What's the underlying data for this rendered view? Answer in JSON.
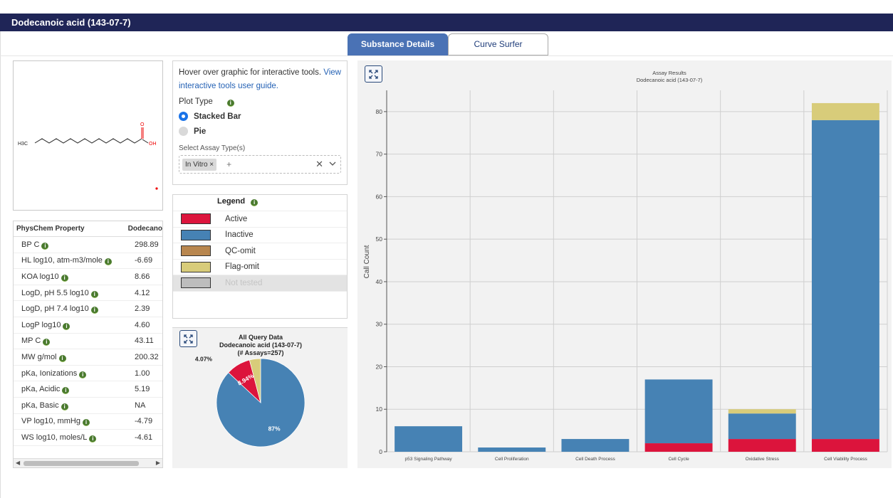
{
  "header": {
    "title": "Dodecanoic acid (143-07-7)"
  },
  "tabs": [
    {
      "label": "Substance Details"
    },
    {
      "label": "Curve Surfer"
    }
  ],
  "structure": {
    "ch3_label": "H3C",
    "o_label": "O",
    "oh_label": "OH"
  },
  "physchem": {
    "col_property": "PhysChem Property",
    "col_value": "Dodecano",
    "rows": [
      {
        "name": "BP C",
        "value": "298.89"
      },
      {
        "name": "HL log10, atm-m3/mole",
        "value": "-6.69"
      },
      {
        "name": "KOA log10",
        "value": "8.66"
      },
      {
        "name": "LogD, pH 5.5 log10",
        "value": "4.12"
      },
      {
        "name": "LogD, pH 7.4 log10",
        "value": "2.39"
      },
      {
        "name": "LogP log10",
        "value": "4.60"
      },
      {
        "name": "MP C",
        "value": "43.11"
      },
      {
        "name": "MW g/mol",
        "value": "200.32"
      },
      {
        "name": "pKa, Ionizations",
        "value": "1.00"
      },
      {
        "name": "pKa, Acidic",
        "value": "5.19"
      },
      {
        "name": "pKa, Basic",
        "value": "NA"
      },
      {
        "name": "VP log10, mmHg",
        "value": "-4.79"
      },
      {
        "name": "WS log10, moles/L",
        "value": "-4.61"
      }
    ]
  },
  "controls": {
    "hover_text": "Hover over graphic for interactive tools.",
    "link_text": "View interactive tools user guide.",
    "plot_type_label": "Plot Type",
    "options": [
      {
        "label": "Stacked Bar",
        "selected": true
      },
      {
        "label": "Pie",
        "selected": false
      }
    ],
    "assay_type_label": "Select Assay Type(s)",
    "chip": "In Vitro",
    "add_placeholder": "+"
  },
  "legend": {
    "title": "Legend",
    "items": [
      {
        "label": "Active",
        "color": "#dc143c"
      },
      {
        "label": "Inactive",
        "color": "#4682b4"
      },
      {
        "label": "QC-omit",
        "color": "#b8864e"
      },
      {
        "label": "Flag-omit",
        "color": "#d8cc7a"
      },
      {
        "label": "Not tested",
        "color": "#bdbdbd"
      }
    ]
  },
  "pie_chart": {
    "title1": "All Query Data",
    "title2": "Dodecanoic acid (143-07-7)",
    "title3": "(# Assays=257)",
    "slices": [
      {
        "label": "87%",
        "value": 87,
        "color": "#4682b4"
      },
      {
        "label": "8.94%",
        "value": 8.94,
        "color": "#dc143c"
      },
      {
        "label": "4.07%",
        "value": 4.07,
        "color": "#d8cc7a"
      }
    ]
  },
  "chart_data": {
    "type": "bar",
    "title": "Assay Results",
    "subtitle": "Dodecanoic acid (143-07-7)",
    "xlabel": "",
    "ylabel": "Call Count",
    "ylim": [
      0,
      85
    ],
    "yticks": [
      0,
      10,
      20,
      30,
      40,
      50,
      60,
      70,
      80
    ],
    "grid": true,
    "categories": [
      "p53 Signaling Pathway",
      "Cell Proliferation",
      "Cell Death Process",
      "Cell Cycle",
      "Oxidative Stress",
      "Cell Viability Process"
    ],
    "series": [
      {
        "name": "Active",
        "color": "#dc143c",
        "values": [
          0,
          0,
          0,
          2,
          3,
          3
        ]
      },
      {
        "name": "Inactive",
        "color": "#4682b4",
        "values": [
          6,
          1,
          3,
          15,
          6,
          75
        ]
      },
      {
        "name": "Flag-omit",
        "color": "#d8cc7a",
        "values": [
          0,
          0,
          0,
          0,
          1,
          4
        ]
      }
    ]
  }
}
